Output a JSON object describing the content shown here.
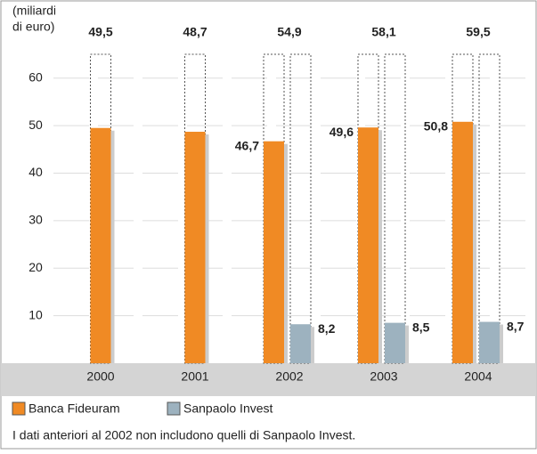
{
  "chart_data": {
    "type": "bar",
    "y_label": [
      "(miliardi",
      "di euro)"
    ],
    "categories": [
      "2000",
      "2001",
      "2002",
      "2003",
      "2004"
    ],
    "series": [
      {
        "name": "Banca Fideuram",
        "color": "#f08a24",
        "values": [
          49.5,
          48.7,
          46.7,
          49.6,
          50.8
        ],
        "value_labels": [
          null,
          null,
          "46,7",
          "49,6",
          "50,8"
        ]
      },
      {
        "name": "Sanpaolo Invest",
        "color": "#9db2bf",
        "values": [
          null,
          null,
          8.2,
          8.5,
          8.7
        ],
        "value_labels": [
          null,
          null,
          "8,2",
          "8,5",
          "8,7"
        ]
      }
    ],
    "totals": {
      "values": [
        49.5,
        48.7,
        54.9,
        58.1,
        59.5
      ],
      "value_labels": [
        "49,5",
        "48,7",
        "54,9",
        "58,1",
        "59,5"
      ]
    },
    "ylim": [
      0,
      65
    ],
    "yticks": [
      10,
      20,
      30,
      40,
      50,
      60
    ],
    "grid": true,
    "note": "I dati anteriori al 2002 non includono quelli di Sanpaolo Invest."
  }
}
